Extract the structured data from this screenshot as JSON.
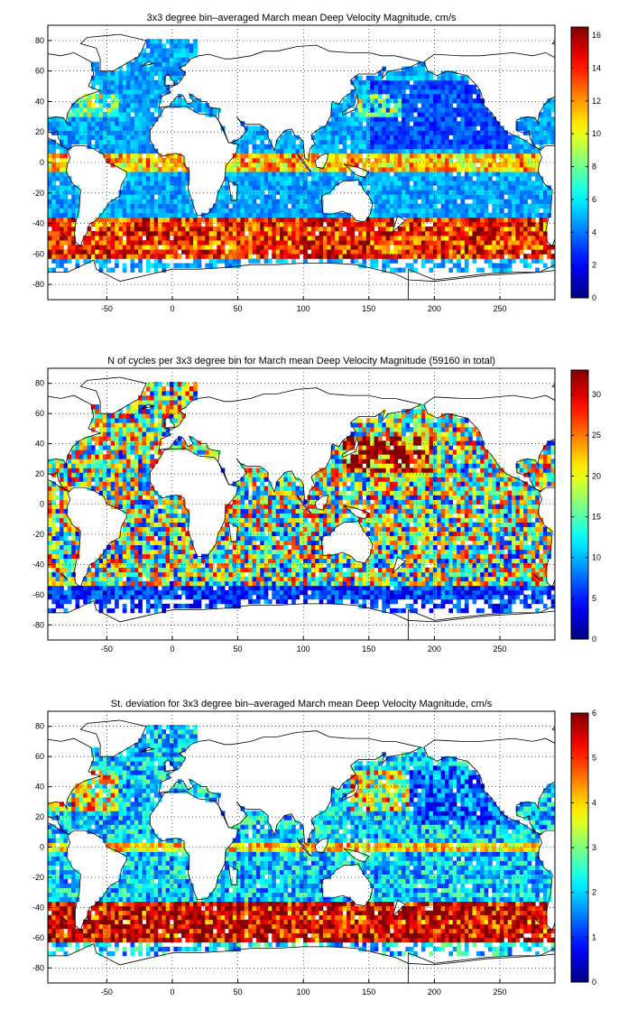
{
  "figure": {
    "panels": [
      {
        "title": "3x3 degree bin–averaged March mean Deep Velocity Magnitude, cm/s",
        "field": "velocity",
        "colorbar": {
          "min": 0,
          "max": 16.5,
          "ticks": [
            0,
            2,
            4,
            6,
            8,
            10,
            12,
            14,
            16
          ]
        }
      },
      {
        "title": "N of cycles per 3x3 degree bin for March mean Deep Velocity Magnitude (59160 in total)",
        "field": "count",
        "colorbar": {
          "min": 0,
          "max": 33,
          "ticks": [
            0,
            5,
            10,
            15,
            20,
            25,
            30
          ]
        }
      },
      {
        "title": "St. deviation for 3x3 degree bin–averaged March mean Deep Velocity Magnitude, cm/s",
        "field": "stdev",
        "colorbar": {
          "min": 0,
          "max": 6,
          "ticks": [
            0,
            1,
            2,
            3,
            4,
            5,
            6
          ]
        }
      }
    ],
    "map_extent": {
      "lon": [
        -95,
        292
      ],
      "lat": [
        -90,
        90
      ]
    },
    "x_ticks": [
      -50,
      0,
      50,
      100,
      150,
      200,
      250
    ],
    "y_ticks": [
      80,
      60,
      40,
      20,
      0,
      -20,
      -40,
      -60,
      -80
    ],
    "grid": "dotted",
    "colormap": "jet"
  }
}
